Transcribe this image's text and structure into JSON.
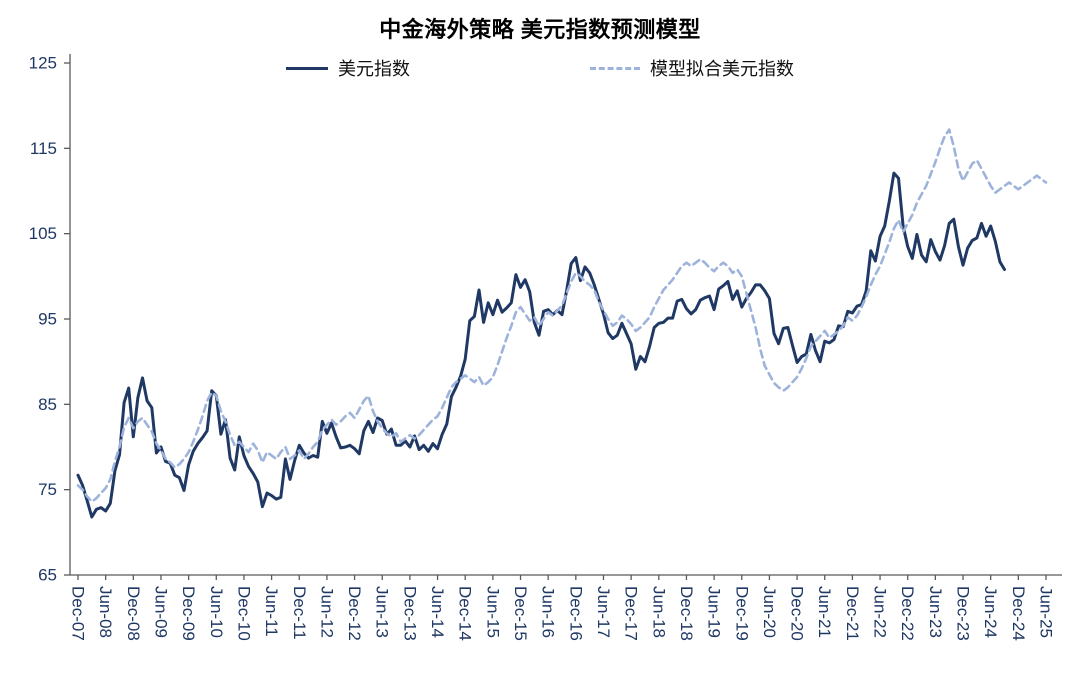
{
  "chart_data": {
    "type": "line",
    "title": "中金海外策略 美元指数预测模型",
    "xlabel": "",
    "ylabel": "",
    "ylim": [
      65,
      125
    ],
    "y_ticks": [
      65,
      75,
      85,
      95,
      105,
      115,
      125
    ],
    "grid": false,
    "legend_position": "top-center",
    "x_tick_every_months": 6,
    "x_tick_labels": [
      "Dec-07",
      "Jun-08",
      "Dec-08",
      "Jun-09",
      "Dec-09",
      "Jun-10",
      "Dec-10",
      "Jun-11",
      "Dec-11",
      "Jun-12",
      "Dec-12",
      "Jun-13",
      "Dec-13",
      "Jun-14",
      "Dec-14",
      "Jun-15",
      "Dec-15",
      "Jun-16",
      "Dec-16",
      "Jun-17",
      "Dec-17",
      "Jun-18",
      "Dec-18",
      "Jun-19",
      "Dec-19",
      "Jun-20",
      "Dec-20",
      "Jun-21",
      "Dec-21",
      "Jun-22",
      "Dec-22",
      "Jun-23",
      "Dec-23",
      "Jun-24",
      "Dec-24",
      "Jun-25"
    ],
    "colors": {
      "usd_index": "#1F3864",
      "model_fit": "#9EB3DB",
      "axis": "#595959"
    },
    "series": [
      {
        "name": "美元指数",
        "style": "solid",
        "color": "#1F3864",
        "values": [
          76.7,
          75.5,
          73.7,
          71.8,
          72.7,
          72.9,
          72.5,
          73.4,
          77.2,
          79.1,
          85.2,
          86.9,
          81.2,
          85.8,
          88.1,
          85.4,
          84.6,
          79.3,
          80.0,
          78.3,
          78.1,
          76.7,
          76.4,
          74.9,
          77.9,
          79.5,
          80.4,
          81.1,
          81.9,
          86.6,
          86.0,
          81.5,
          83.2,
          78.7,
          77.3,
          81.2,
          79.0,
          77.7,
          76.9,
          75.9,
          73.0,
          74.6,
          74.3,
          73.9,
          74.1,
          78.6,
          76.2,
          78.4,
          80.2,
          79.3,
          78.7,
          79.0,
          78.8,
          83.0,
          81.6,
          82.8,
          81.2,
          79.9,
          80.0,
          80.2,
          79.8,
          79.2,
          81.9,
          83.0,
          81.7,
          83.4,
          83.1,
          81.5,
          82.1,
          80.2,
          80.2,
          80.7,
          80.0,
          81.3,
          79.7,
          80.2,
          79.5,
          80.4,
          79.8,
          81.5,
          82.7,
          85.9,
          87.0,
          88.3,
          90.3,
          94.8,
          95.3,
          98.4,
          94.6,
          96.9,
          95.5,
          97.2,
          95.8,
          96.3,
          96.9,
          100.2,
          98.7,
          99.6,
          98.2,
          94.6,
          93.1,
          95.9,
          96.1,
          95.5,
          96.0,
          95.5,
          98.3,
          101.5,
          102.2,
          99.5,
          101.1,
          100.4,
          99.0,
          97.3,
          95.6,
          93.4,
          92.7,
          93.1,
          94.5,
          93.3,
          92.1,
          89.1,
          90.6,
          90.0,
          91.8,
          94.0,
          94.5,
          94.6,
          95.1,
          95.1,
          97.1,
          97.3,
          96.2,
          95.6,
          96.1,
          97.2,
          97.5,
          97.7,
          96.1,
          98.5,
          98.9,
          99.4,
          97.3,
          98.3,
          96.4,
          97.4,
          98.1,
          99.0,
          99.0,
          98.3,
          97.4,
          93.3,
          92.1,
          93.9,
          94.0,
          91.9,
          89.9,
          90.6,
          90.9,
          93.2,
          91.3,
          90.0,
          92.4,
          92.2,
          92.6,
          94.2,
          94.1,
          95.9,
          95.7,
          96.5,
          96.7,
          98.3,
          103.0,
          101.8,
          104.7,
          105.9,
          108.8,
          112.1,
          111.5,
          105.9,
          103.5,
          102.1,
          104.9,
          102.5,
          101.7,
          104.3,
          102.9,
          101.9,
          103.6,
          106.2,
          106.7,
          103.5,
          101.3,
          103.3,
          104.2,
          104.5,
          106.2,
          104.7,
          105.9,
          104.1,
          101.7,
          100.8,
          null,
          null,
          null,
          null,
          null,
          null,
          null,
          null,
          null
        ]
      },
      {
        "name": "模型拟合美元指数",
        "style": "dashed",
        "color": "#9EB3DB",
        "values": [
          75.5,
          75.0,
          74.2,
          73.6,
          74.0,
          74.6,
          75.2,
          76.2,
          78.3,
          80.0,
          82.3,
          83.4,
          82.2,
          83.0,
          83.4,
          82.6,
          81.8,
          80.4,
          79.6,
          78.6,
          78.2,
          77.6,
          78.0,
          78.6,
          79.4,
          80.6,
          82.0,
          83.6,
          85.4,
          86.4,
          86.0,
          84.2,
          83.0,
          81.4,
          80.2,
          80.6,
          80.0,
          79.4,
          80.4,
          79.6,
          78.2,
          79.4,
          79.0,
          78.6,
          79.4,
          80.0,
          78.6,
          79.0,
          79.6,
          78.6,
          79.2,
          80.0,
          80.6,
          82.0,
          82.6,
          83.2,
          82.6,
          83.0,
          83.6,
          84.0,
          83.4,
          84.4,
          85.4,
          86.0,
          84.2,
          83.0,
          82.2,
          81.6,
          81.2,
          81.6,
          80.6,
          81.0,
          81.4,
          81.0,
          81.4,
          82.0,
          82.6,
          83.2,
          83.6,
          84.6,
          85.8,
          87.0,
          87.6,
          88.0,
          88.4,
          88.0,
          87.6,
          88.2,
          87.2,
          87.6,
          88.2,
          89.6,
          91.2,
          92.8,
          94.2,
          95.8,
          96.4,
          95.6,
          94.8,
          95.2,
          94.2,
          95.0,
          95.8,
          95.4,
          96.0,
          96.6,
          98.0,
          99.4,
          100.4,
          100.0,
          99.4,
          99.0,
          98.4,
          97.0,
          96.0,
          95.0,
          94.2,
          94.6,
          95.4,
          95.0,
          94.4,
          93.6,
          94.0,
          94.6,
          95.2,
          96.4,
          97.4,
          98.4,
          99.0,
          99.6,
          100.4,
          101.2,
          101.6,
          101.2,
          101.6,
          102.0,
          101.6,
          101.0,
          100.6,
          101.2,
          101.6,
          101.2,
          100.4,
          100.8,
          100.0,
          98.0,
          96.0,
          94.0,
          91.5,
          89.5,
          88.5,
          87.5,
          87.0,
          86.6,
          87.0,
          87.6,
          88.2,
          89.2,
          90.4,
          91.8,
          92.4,
          93.0,
          93.6,
          92.8,
          93.2,
          93.6,
          94.2,
          95.2,
          94.8,
          95.4,
          96.4,
          97.6,
          99.0,
          100.2,
          101.2,
          102.6,
          104.0,
          105.6,
          106.6,
          105.2,
          106.2,
          107.2,
          108.6,
          109.6,
          110.6,
          112.0,
          113.4,
          115.0,
          116.4,
          117.2,
          115.2,
          112.6,
          111.2,
          112.2,
          113.2,
          113.6,
          112.6,
          111.6,
          110.6,
          109.8,
          110.2,
          110.6,
          111.0,
          110.6,
          110.2,
          110.6,
          111.0,
          111.4,
          111.8,
          111.4,
          111.0
        ]
      }
    ]
  }
}
